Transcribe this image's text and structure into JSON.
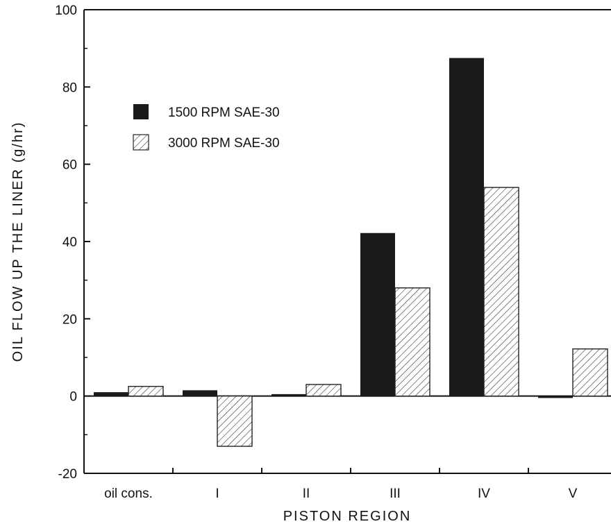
{
  "chart_data": {
    "type": "bar",
    "title": "",
    "xlabel": "PISTON REGION",
    "ylabel": "OIL FLOW UP THE LINER (g/hr)",
    "categories": [
      "oil cons.",
      "I",
      "II",
      "III",
      "IV",
      "V"
    ],
    "series": [
      {
        "name": "1500 RPM SAE-30",
        "values": [
          1.0,
          1.5,
          0.5,
          42.2,
          87.5,
          -0.5
        ],
        "color": "#1a1a1a",
        "pattern": "solid"
      },
      {
        "name": "3000 RPM SAE-30",
        "values": [
          2.5,
          -13.0,
          3.0,
          28.0,
          54.0,
          12.2
        ],
        "color": "#ffffff",
        "pattern": "hatched"
      }
    ],
    "ylim": [
      -20,
      100
    ],
    "yticks": [
      -20,
      0,
      20,
      40,
      60,
      80,
      100
    ],
    "grid": false,
    "legend_position": "top-left"
  }
}
